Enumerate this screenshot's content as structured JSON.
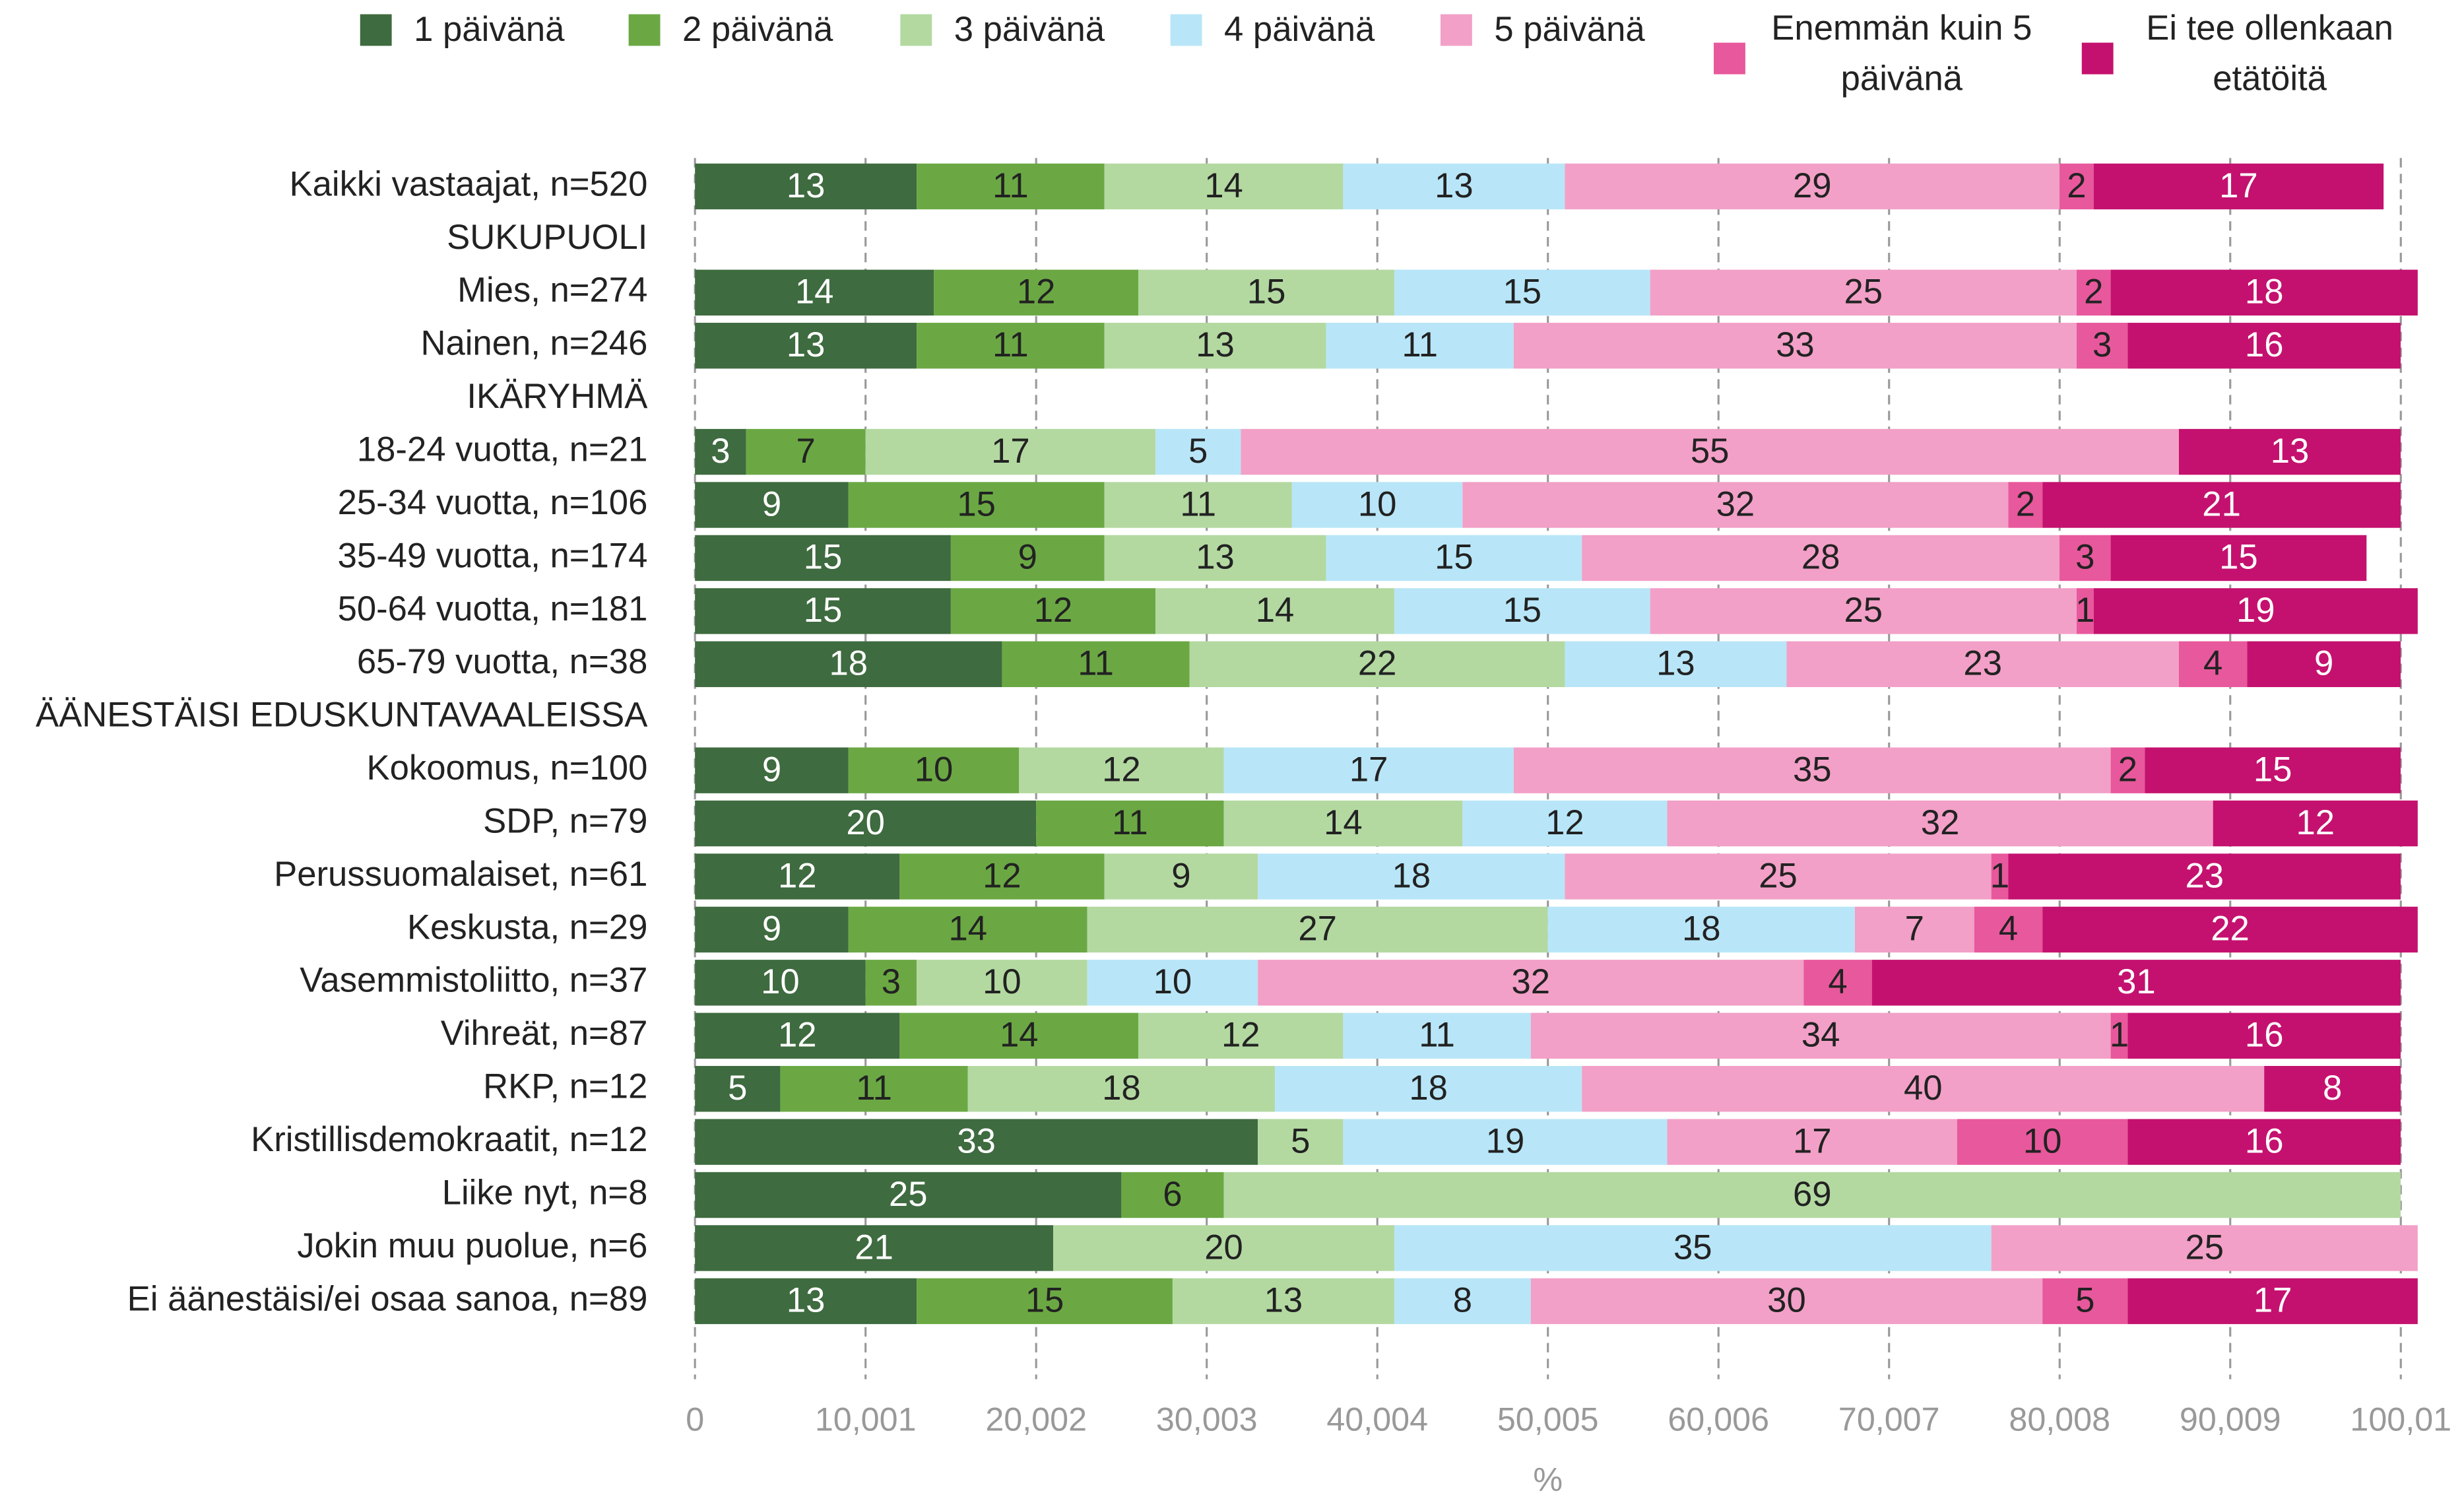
{
  "chart_data": {
    "type": "stacked_bar_horizontal",
    "categories": [
      "Kaikki vastaajat, n=520",
      "SUKUPUOLI",
      "Mies, n=274",
      "Nainen, n=246",
      "IKÄRYHMÄ",
      "18-24 vuotta, n=21",
      "25-34 vuotta, n=106",
      "35-49 vuotta, n=174",
      "50-64 vuotta, n=181",
      "65-79 vuotta, n=38",
      "ÄÄNESTÄISI EDUSKUNTAVAALEISSA",
      "Kokoomus, n=100",
      "SDP, n=79",
      "Perussuomalaiset, n=61",
      "Keskusta, n=29",
      "Vasemmistoliitto, n=37",
      "Vihreät, n=87",
      "RKP, n=12",
      "Kristillisdemokraatit, n=12",
      "Liike nyt, n=8",
      "Jokin muu puolue, n=6",
      "Ei äänestäisi/ei osaa sanoa, n=89"
    ],
    "series": [
      {
        "name": "1 päivänä",
        "color": "#3e6b3f",
        "values": [
          13,
          null,
          14,
          13,
          null,
          3,
          9,
          15,
          15,
          18,
          null,
          9,
          20,
          12,
          9,
          10,
          12,
          5,
          33,
          25,
          21,
          13
        ]
      },
      {
        "name": "2 päivänä",
        "color": "#6ba844",
        "values": [
          11,
          null,
          12,
          11,
          null,
          7,
          15,
          9,
          12,
          11,
          null,
          10,
          11,
          12,
          14,
          3,
          14,
          11,
          null,
          6,
          null,
          15
        ]
      },
      {
        "name": "3 päivänä",
        "color": "#b3d9a1",
        "values": [
          14,
          null,
          15,
          13,
          null,
          17,
          11,
          13,
          14,
          22,
          null,
          12,
          14,
          9,
          27,
          10,
          12,
          18,
          5,
          69,
          20,
          13
        ]
      },
      {
        "name": "4 päivänä",
        "color": "#b8e6f8",
        "values": [
          13,
          null,
          15,
          11,
          null,
          5,
          10,
          15,
          15,
          13,
          null,
          17,
          12,
          18,
          18,
          10,
          11,
          18,
          19,
          null,
          35,
          8
        ]
      },
      {
        "name": "5 päivänä",
        "color": "#f2a0c7",
        "values": [
          29,
          null,
          25,
          33,
          null,
          55,
          32,
          28,
          25,
          23,
          null,
          35,
          32,
          25,
          7,
          32,
          34,
          40,
          17,
          null,
          25,
          30
        ]
      },
      {
        "name": "Enemmän kuin 5 päivänä",
        "color": "#e8589c",
        "values": [
          2,
          null,
          2,
          3,
          null,
          null,
          2,
          3,
          1,
          4,
          null,
          2,
          null,
          1,
          4,
          4,
          1,
          null,
          10,
          null,
          null,
          5
        ]
      },
      {
        "name": "Ei tee ollenkaan etätöitä",
        "color": "#c4116f",
        "values": [
          17,
          null,
          18,
          16,
          null,
          13,
          21,
          15,
          19,
          9,
          null,
          15,
          12,
          23,
          22,
          31,
          16,
          8,
          16,
          null,
          null,
          17
        ]
      }
    ],
    "xlim": [
      0,
      100.01
    ],
    "xticks": [
      0,
      {
        "value": 10.001,
        "label": "10,001"
      },
      {
        "value": 20.002,
        "label": "20,002"
      },
      {
        "value": 30.003,
        "label": "30,003"
      },
      {
        "value": 40.004,
        "label": "40,004"
      },
      {
        "value": 50.005,
        "label": "50,005"
      },
      {
        "value": 60.006,
        "label": "60,006"
      },
      {
        "value": 70.007,
        "label": "70,007"
      },
      {
        "value": 80.008,
        "label": "80,008"
      },
      {
        "value": 90.009,
        "label": "90,009"
      },
      {
        "value": 100.01,
        "label": "100,01"
      }
    ],
    "xlabel": "%",
    "grid": true,
    "legend": "top"
  }
}
